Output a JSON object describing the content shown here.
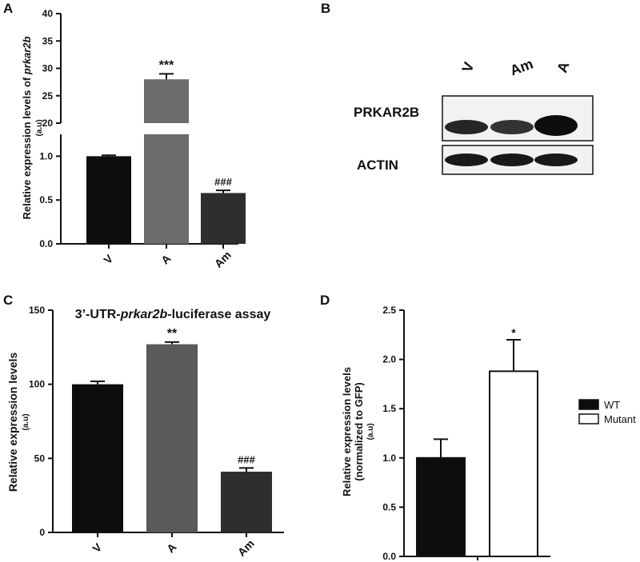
{
  "panels": {
    "A": {
      "letter": "A"
    },
    "B": {
      "letter": "B"
    },
    "C": {
      "letter": "C"
    },
    "D": {
      "letter": "D"
    }
  },
  "chart_data": [
    {
      "id": "A",
      "type": "bar",
      "title": "",
      "ylabel_main": "Relative expression levels of ",
      "ylabel_italic": "prkar2b",
      "ylabel_unit": "(a.u)",
      "categories": [
        "V",
        "A",
        "Am"
      ],
      "values": [
        1.0,
        28.0,
        0.58
      ],
      "errors": [
        0.01,
        1.0,
        0.03
      ],
      "colors": [
        "#0d0d0d",
        "#6b6b6b",
        "#2e2e2e"
      ],
      "significance": [
        "",
        "***",
        "###"
      ],
      "axis_break": true,
      "lower_ylim": [
        0,
        1.25
      ],
      "lower_ticks": [
        "0.0",
        "0.5",
        "1.0"
      ],
      "upper_ylim": [
        20,
        40
      ],
      "upper_ticks": [
        "20",
        "25",
        "30",
        "35",
        "40"
      ]
    },
    {
      "id": "C",
      "type": "bar",
      "title_prefix": "3’-UTR-",
      "title_italic": "prkar2b",
      "title_suffix": "-luciferase assay",
      "ylabel": "Relative expression levels",
      "ylabel_unit": "(a.u)",
      "categories": [
        "V",
        "A",
        "Am"
      ],
      "values": [
        100,
        127,
        41
      ],
      "errors": [
        2,
        1.5,
        2.5
      ],
      "colors": [
        "#0d0d0d",
        "#5a5a5a",
        "#2e2e2e"
      ],
      "significance": [
        "",
        "**",
        "###"
      ],
      "ylim": [
        0,
        150
      ],
      "yticks": [
        "0",
        "50",
        "100",
        "150"
      ]
    },
    {
      "id": "D",
      "type": "bar",
      "ylabel": "Relative expression levels",
      "ylabel2": "(normalized to GFP)",
      "ylabel_unit": "(a.u)",
      "series": [
        {
          "name": "WT",
          "value": 1.0,
          "error": 0.19,
          "fill": "#0d0d0d"
        },
        {
          "name": "Mutant",
          "value": 1.88,
          "error": 0.32,
          "fill": "#ffffff"
        }
      ],
      "significance": [
        "",
        "*"
      ],
      "ylim": [
        0,
        2.5
      ],
      "yticks": [
        "0.0",
        "0.5",
        "1.0",
        "1.5",
        "2.0",
        "2.5"
      ],
      "legend_position": "right"
    }
  ],
  "blot": {
    "lanes": [
      "V",
      "Am",
      "A"
    ],
    "rows": [
      {
        "label": "PRKAR2B",
        "band_intensity": [
          0.85,
          0.8,
          0.95
        ]
      },
      {
        "label": "ACTIN",
        "band_intensity": [
          0.9,
          0.9,
          0.9
        ]
      }
    ]
  }
}
